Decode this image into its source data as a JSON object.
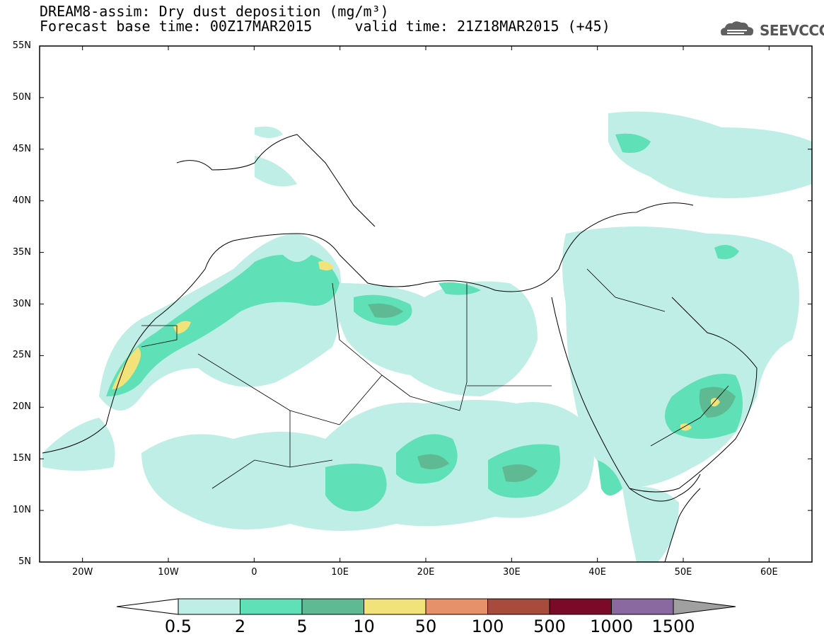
{
  "header": {
    "title_line1": "DREAM8-assim: Dry dust deposition (mg/m³)",
    "title_line2": "Forecast base time: 00Z17MAR2015     valid time: 21Z18MAR2015 (+45)",
    "logo_text": "SEEVCCC"
  },
  "axes": {
    "lat_labels": [
      "55N",
      "50N",
      "45N",
      "40N",
      "35N",
      "30N",
      "25N",
      "20N",
      "15N",
      "10N",
      "5N"
    ],
    "lon_labels": [
      "20W",
      "10W",
      "0",
      "10E",
      "20E",
      "30E",
      "40E",
      "50E",
      "60E"
    ]
  },
  "colorbar": {
    "labels": [
      "0.5",
      "2",
      "5",
      "10",
      "50",
      "100",
      "500",
      "1000",
      "1500"
    ],
    "colors": [
      "#bfeee6",
      "#5fe0b6",
      "#5fba94",
      "#f2e27a",
      "#e8906a",
      "#a84a3c",
      "#7a0a28",
      "#8a68a0",
      "#a0a0a0"
    ]
  },
  "map": {
    "lon_range": [
      -25,
      65
    ],
    "lat_range": [
      5,
      55
    ],
    "projection": "lat-lon"
  }
}
